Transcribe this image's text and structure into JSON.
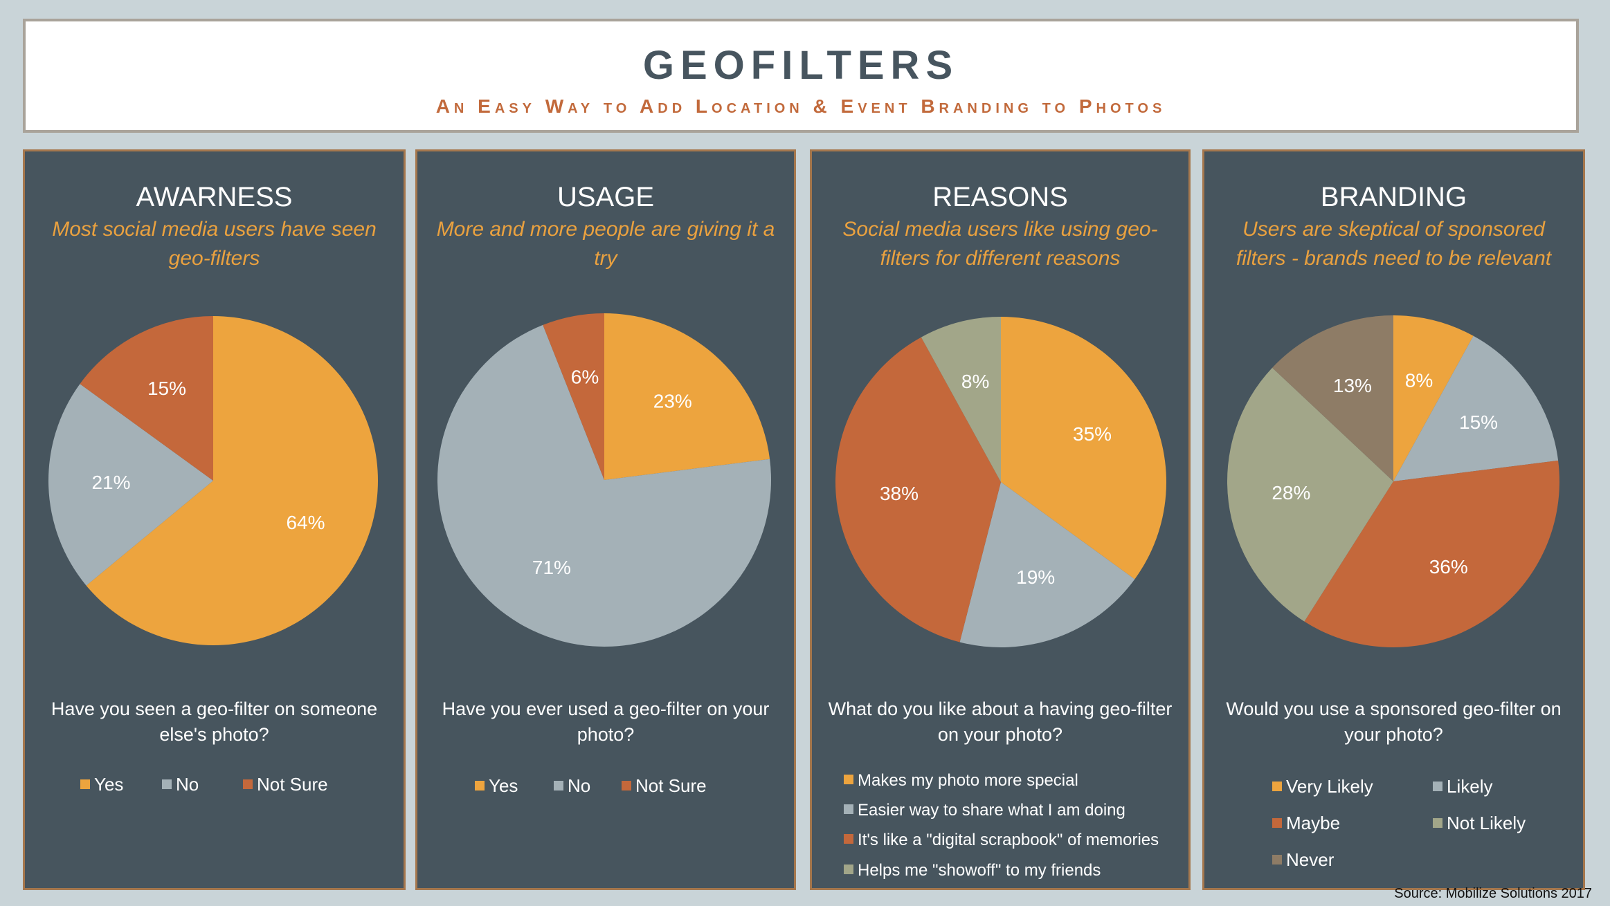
{
  "header": {
    "title": "GEOFILTERS",
    "subtitle": "An Easy Way to Add Location & Event Branding to Photos"
  },
  "colors": {
    "orange": "#eda43e",
    "gray": "#a4b1b7",
    "rust": "#c4683b",
    "olive": "#a2a689",
    "brown": "#8e7c66",
    "panel_bg": "#47555e"
  },
  "source": "Source: Mobilize Solutions 2017",
  "panels": [
    {
      "title": "AWARNESS",
      "subtitle": "Most social media users have seen geo-filters",
      "question": "Have you seen a geo-filter on someone else's photo?"
    },
    {
      "title": "USAGE",
      "subtitle": "More and more people are giving it a try",
      "question": "Have you ever used a geo-filter on your photo?"
    },
    {
      "title": "REASONS",
      "subtitle": "Social media users like using geo-filters for different reasons",
      "question": "What do you like about a having geo-filter on your photo?"
    },
    {
      "title": "BRANDING",
      "subtitle": "Users are skeptical of sponsored filters - brands need to be relevant",
      "question": "Would you use a sponsored geo-filter on your photo?"
    }
  ],
  "chart_data": [
    {
      "type": "pie",
      "title": "AWARNESS",
      "categories": [
        "Yes",
        "No",
        "Not Sure"
      ],
      "values": [
        64,
        21,
        15
      ],
      "labels": [
        "64%",
        "21%",
        "15%"
      ],
      "colors": [
        "#eda43e",
        "#a4b1b7",
        "#c4683b"
      ]
    },
    {
      "type": "pie",
      "title": "USAGE",
      "categories": [
        "Yes",
        "No",
        "Not Sure"
      ],
      "values": [
        23,
        71,
        6
      ],
      "labels": [
        "23%",
        "71%",
        "6%"
      ],
      "colors": [
        "#eda43e",
        "#a4b1b7",
        "#c4683b"
      ]
    },
    {
      "type": "pie",
      "title": "REASONS",
      "categories": [
        "Makes my photo more special",
        "Easier way to share what I am doing",
        "It's like a \"digital scrapbook\" of memories",
        "Helps me \"showoff\" to my friends"
      ],
      "values": [
        35,
        19,
        38,
        8
      ],
      "labels": [
        "35%",
        "19%",
        "38%",
        "8%"
      ],
      "colors": [
        "#eda43e",
        "#a4b1b7",
        "#c4683b",
        "#a2a689"
      ]
    },
    {
      "type": "pie",
      "title": "BRANDING",
      "categories": [
        "Very Likely",
        "Likely",
        "Maybe",
        "Not Likely",
        "Never"
      ],
      "values": [
        8,
        15,
        36,
        28,
        13
      ],
      "labels": [
        "8%",
        "15%",
        "36%",
        "28%",
        "13%"
      ],
      "colors": [
        "#eda43e",
        "#a4b1b7",
        "#c4683b",
        "#a2a689",
        "#8e7c66"
      ]
    }
  ]
}
